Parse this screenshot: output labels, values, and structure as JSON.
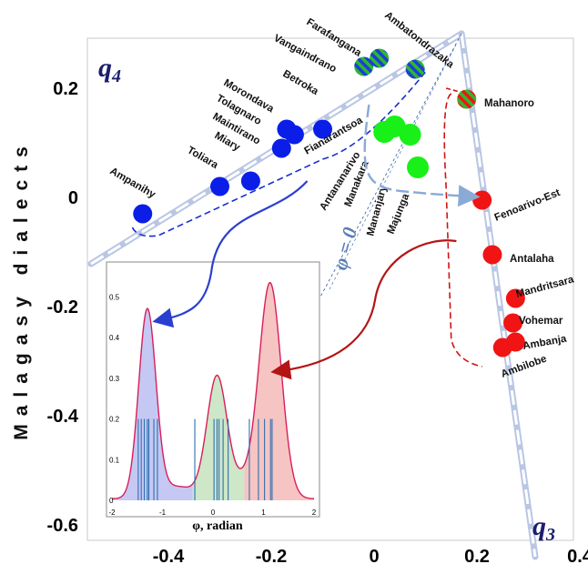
{
  "chart_data": {
    "type": "scatter",
    "ylabel": "Malagasy dialects",
    "xlim": [
      -0.55,
      0.43
    ],
    "ylim": [
      -0.6,
      0.28
    ],
    "x_ticks": [
      "-0.4",
      "-0.2",
      "0",
      "0.2",
      "0.4"
    ],
    "x_tick_values": [
      -0.4,
      -0.2,
      0,
      0.2,
      0.4
    ],
    "y_ticks": [
      "0.2",
      "0",
      "-0.2",
      "-0.4",
      "-0.6"
    ],
    "y_tick_values": [
      0.2,
      0,
      -0.2,
      -0.4,
      -0.6
    ],
    "axis_names": {
      "q4": "q",
      "q4_sub": "4",
      "q3": "q",
      "q3_sub": "3"
    },
    "phi_zero_label": "φ = 0",
    "colors": {
      "blue": "#0a1ee8",
      "green": "#18f018",
      "red": "#f01414",
      "striped_green": "#2eb82e",
      "striped_blue": "#1a3fd6"
    },
    "points": [
      {
        "name": "Ampanihy",
        "x": -0.45,
        "y": -0.03,
        "group": "blue"
      },
      {
        "name": "Toliara",
        "x": -0.3,
        "y": 0.02,
        "group": "blue"
      },
      {
        "name": "Miary",
        "x": -0.24,
        "y": 0.03,
        "group": "blue"
      },
      {
        "name": "Maintirano",
        "x": -0.18,
        "y": 0.09,
        "group": "blue"
      },
      {
        "name": "Tolagnaro",
        "x": -0.17,
        "y": 0.125,
        "group": "blue"
      },
      {
        "name": "Morondava",
        "x": -0.155,
        "y": 0.115,
        "group": "blue"
      },
      {
        "name": "Betroka",
        "x": -0.1,
        "y": 0.125,
        "group": "blue"
      },
      {
        "name": "Fianarantsoa",
        "x": 0.02,
        "y": 0.12,
        "group": "green"
      },
      {
        "name": "Antananarivo",
        "x": 0.04,
        "y": 0.13,
        "group": "green"
      },
      {
        "name": "Manakara",
        "x": 0.02,
        "y": 0.12,
        "group": "green"
      },
      {
        "name": "Mananjary",
        "x": 0.07,
        "y": 0.115,
        "group": "green"
      },
      {
        "name": "Majunga",
        "x": 0.085,
        "y": 0.055,
        "group": "green"
      },
      {
        "name": "Vangaindrano",
        "x": -0.02,
        "y": 0.24,
        "group": "blue-green"
      },
      {
        "name": "Farafangana",
        "x": 0.01,
        "y": 0.255,
        "group": "blue-green"
      },
      {
        "name": "Ambatondrazaka",
        "x": 0.08,
        "y": 0.235,
        "group": "blue-green"
      },
      {
        "name": "Mahanoro",
        "x": 0.18,
        "y": 0.18,
        "group": "red-green"
      },
      {
        "name": "Fenoarivo-Est",
        "x": 0.21,
        "y": -0.005,
        "group": "red"
      },
      {
        "name": "Antalaha",
        "x": 0.23,
        "y": -0.105,
        "group": "red"
      },
      {
        "name": "Mandritsara",
        "x": 0.275,
        "y": -0.185,
        "group": "red"
      },
      {
        "name": "Vohemar",
        "x": 0.27,
        "y": -0.23,
        "group": "red"
      },
      {
        "name": "Ambanja",
        "x": 0.275,
        "y": -0.265,
        "group": "red"
      },
      {
        "name": "Ambilobe",
        "x": 0.25,
        "y": -0.275,
        "group": "red"
      }
    ],
    "inset": {
      "type": "area",
      "xlabel": "φ, radian",
      "xlim": [
        -2,
        2
      ],
      "ylim": [
        0,
        0.55
      ],
      "x_ticks": [
        "-2",
        "-1",
        "0",
        "1",
        "2"
      ],
      "x_tick_values": [
        -2,
        -1,
        0,
        1,
        2
      ],
      "y_ticks": [
        "0",
        "0.1",
        "0.2",
        "0.3",
        "0.4",
        "0.5"
      ],
      "y_tick_values": [
        0,
        0.1,
        0.2,
        0.3,
        0.4,
        0.5
      ],
      "density_peaks": [
        {
          "mu": -1.3,
          "sigma": 0.17,
          "amp": 0.46
        },
        {
          "mu": 0.08,
          "sigma": 0.2,
          "amp": 0.3
        },
        {
          "mu": 1.13,
          "sigma": 0.22,
          "amp": 0.53
        },
        {
          "mu": -0.72,
          "sigma": 0.35,
          "amp": 0.03
        },
        {
          "mu": 0.6,
          "sigma": 0.2,
          "amp": 0.04
        }
      ],
      "regions": [
        {
          "from": -2,
          "to": -0.4,
          "color": "#c4c8f2"
        },
        {
          "from": -0.4,
          "to": 0.62,
          "color": "#cde7c8"
        },
        {
          "from": 0.62,
          "to": 2,
          "color": "#f6c4c2"
        }
      ],
      "rug_phi": [
        -1.48,
        -1.42,
        -1.36,
        -1.3,
        -1.27,
        -1.17,
        -1.1,
        -0.36,
        0.02,
        0.08,
        0.12,
        0.2,
        0.3,
        0.72,
        0.9,
        1.02,
        1.14,
        1.17
      ]
    }
  }
}
